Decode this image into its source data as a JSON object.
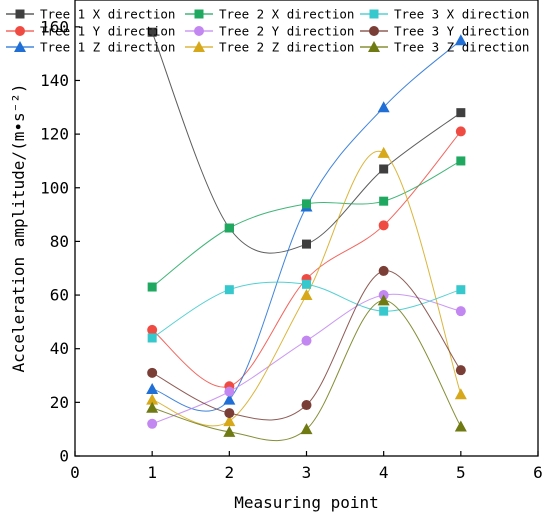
{
  "chart_data": {
    "type": "line",
    "xlabel": "Measuring point",
    "ylabel": "Acceleration amplitude/(m•s⁻²)",
    "xlim": [
      0,
      6
    ],
    "ylim": [
      0,
      170
    ],
    "xticks": [
      0,
      1,
      2,
      3,
      4,
      5,
      6
    ],
    "yticks": [
      0,
      20,
      40,
      60,
      80,
      100,
      120,
      140,
      160
    ],
    "grid": false,
    "legend_position": "top",
    "x": [
      1,
      2,
      3,
      4,
      5
    ],
    "series": [
      {
        "name": "Tree 1 X direction",
        "color": "#3f3f3f",
        "marker": "square",
        "values": [
          158,
          85,
          79,
          107,
          128
        ]
      },
      {
        "name": "Tree 1 Y direction",
        "color": "#f04b43",
        "marker": "circle",
        "values": [
          47,
          26,
          66,
          86,
          121
        ]
      },
      {
        "name": "Tree 1 Z direction",
        "color": "#1f6fd6",
        "marker": "triangle",
        "values": [
          25,
          21,
          93,
          130,
          155
        ]
      },
      {
        "name": "Tree 2 X direction",
        "color": "#1fa85f",
        "marker": "square",
        "values": [
          63,
          85,
          94,
          95,
          110
        ]
      },
      {
        "name": "Tree 2 Y direction",
        "color": "#c287f0",
        "marker": "circle",
        "values": [
          12,
          24,
          43,
          60,
          54
        ]
      },
      {
        "name": "Tree 2 Z direction",
        "color": "#d6a81a",
        "marker": "triangle",
        "values": [
          21,
          13,
          60,
          113,
          23
        ]
      },
      {
        "name": "Tree 3 X direction",
        "color": "#36c8cc",
        "marker": "square",
        "values": [
          44,
          62,
          64,
          54,
          62
        ]
      },
      {
        "name": "Tree 3 Y direction",
        "color": "#7a3e36",
        "marker": "circle",
        "values": [
          31,
          16,
          19,
          69,
          32
        ]
      },
      {
        "name": "Tree 3 Z direction",
        "color": "#6f7a12",
        "marker": "triangle",
        "values": [
          18,
          9,
          10,
          58,
          11
        ]
      }
    ]
  }
}
